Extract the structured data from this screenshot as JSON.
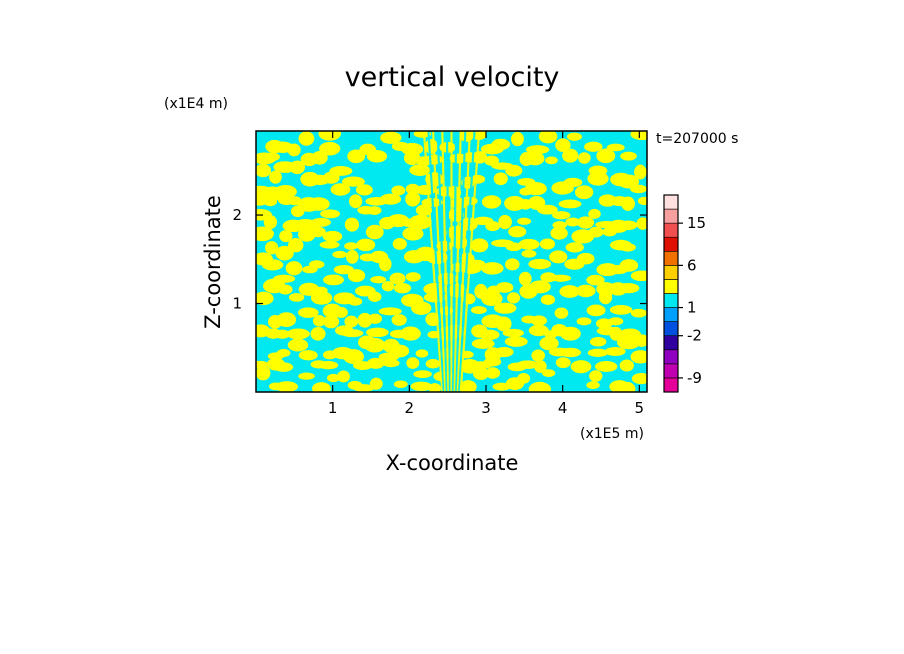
{
  "chart_data": {
    "type": "heatmap",
    "title": "vertical velocity",
    "xlabel": "X-coordinate",
    "ylabel": "Z-coordinate",
    "x_unit": "(x1E5 m)",
    "y_unit": "(x1E4 m)",
    "time_label": "t=207000 s",
    "xlim": [
      0.0,
      5.1
    ],
    "ylim": [
      0.0,
      2.95
    ],
    "x_ticks": [
      1,
      2,
      3,
      4,
      5
    ],
    "y_ticks": [
      1,
      2
    ],
    "colorbar": {
      "levels": [
        -12,
        -9,
        -6,
        -3,
        -2,
        -1,
        1,
        2,
        3,
        6,
        9,
        12,
        15,
        18,
        21
      ],
      "colors": [
        "#e6009a",
        "#c000b0",
        "#9000c0",
        "#3000a0",
        "#0050e0",
        "#00a0ff",
        "#00e8f0",
        "#ffff00",
        "#ffd000",
        "#f07000",
        "#e01000",
        "#f05050",
        "#f8a0a0",
        "#ffe0e0"
      ],
      "tick_labels": [
        "-9",
        "-2",
        "1",
        "6",
        "15"
      ],
      "tick_values": [
        -9,
        -2,
        1,
        6,
        15
      ]
    },
    "field_colors": {
      "negative": "#00e8f0",
      "positive": "#ffff00"
    },
    "field_ranges": {
      "negative": [
        -1,
        1
      ],
      "positive": [
        1,
        2
      ]
    }
  }
}
